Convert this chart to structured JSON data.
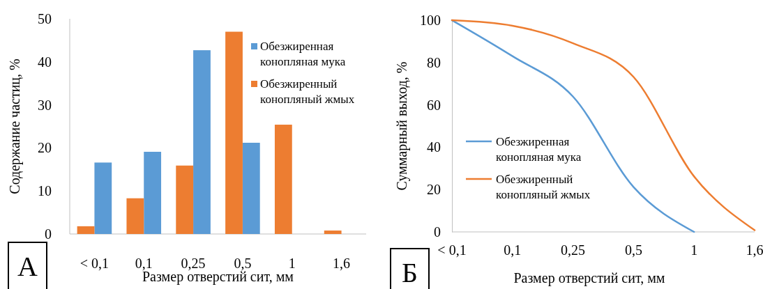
{
  "chart_data": [
    {
      "type": "bar",
      "categories": [
        "< 0,1",
        "0,1",
        "0,25",
        "0,5",
        "1",
        "1,6"
      ],
      "xlabel": "Размер отверстий сит, мм",
      "ylabel": "Содержание частиц, %",
      "ylim": [
        0,
        50
      ],
      "yticks": [
        0,
        10,
        20,
        30,
        40,
        50
      ],
      "legend": "top right",
      "annotations": [
        "А"
      ],
      "series": [
        {
          "name": "Обезжиренная конопляная мука",
          "color": "#5b9bd5",
          "values": [
            16.6,
            19.1,
            42.7,
            21.2,
            0,
            0
          ]
        },
        {
          "name": "Обезжиренный конопляный жмых",
          "color": "#ed7d31",
          "values": [
            1.8,
            8.3,
            15.9,
            47,
            25.4,
            0.8
          ]
        }
      ]
    },
    {
      "type": "line",
      "categories": [
        "< 0,1",
        "0,1",
        "0,25",
        "0,5",
        "1",
        "1,6"
      ],
      "xlabel": "Размер отверстий сит, мм",
      "ylabel": "Суммарный выход, %",
      "ylim": [
        0,
        100
      ],
      "yticks": [
        0,
        20,
        40,
        60,
        80,
        100
      ],
      "legend": "bottom left",
      "marker": "none",
      "annotations": [
        "Б"
      ],
      "series": [
        {
          "name": "Обезжиренная конопляная мука",
          "color": "#5b9bd5",
          "values": [
            100,
            83,
            63.9,
            21.2,
            0,
            null
          ]
        },
        {
          "name": "Обезжиренный конопляный жмых",
          "color": "#ed7d31",
          "values": [
            100,
            97.4,
            89.1,
            73.2,
            26.2,
            0.8
          ]
        }
      ]
    }
  ]
}
